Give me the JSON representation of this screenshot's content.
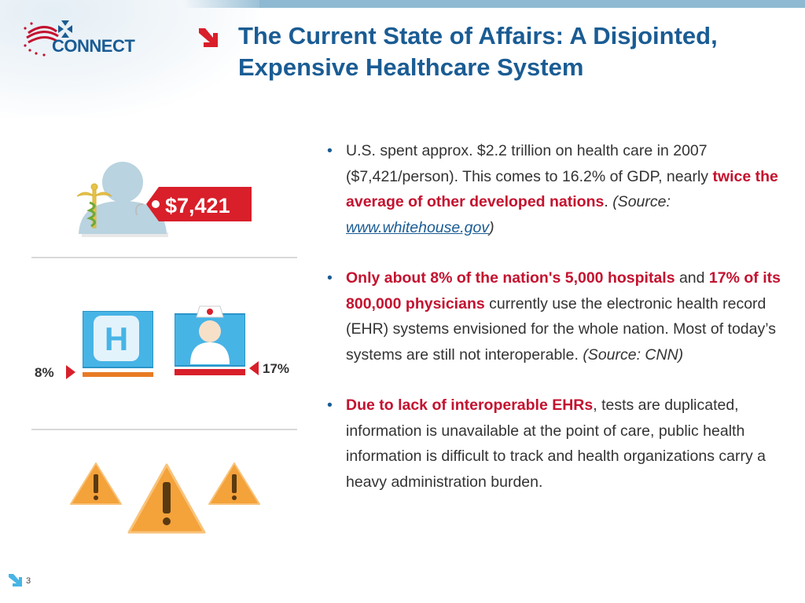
{
  "header": {
    "logo_text": "CONNECT",
    "title_line1": "The Current State of Affairs: A Disjointed,",
    "title_line2": "Expensive Healthcare System"
  },
  "infographic": {
    "price_tag": "$7,421",
    "hospital_pct": "8%",
    "physician_pct": "17%",
    "hospital_letter": "H"
  },
  "bullets": [
    {
      "t1": "U.S. spent approx. $2.2 trillion on health care in 2007 ($7,421/person). This comes to 16.2% of GDP, nearly ",
      "red1": "twice the average of other developed nations",
      "t2": ". ",
      "source_prefix": "(Source: ",
      "link": "www.whitehouse.gov",
      "source_suffix": ")"
    },
    {
      "red1": "Only about 8% of the nation's 5,000 hospitals",
      "t1": " and ",
      "red2": "17% of its 800,000 physicians",
      "t2": " currently use the electronic health record (EHR) systems envisioned for the whole nation. Most of today’s systems are still not interoperable. ",
      "source": "(Source: CNN)"
    },
    {
      "red1": "Due to lack of interoperable EHRs",
      "t1": ", tests are duplicated, information is unavailable at the point of care, public health information is difficult to track and health organizations carry a heavy administration burden."
    }
  ],
  "footer": {
    "page_number": "3"
  },
  "colors": {
    "brand_blue": "#1a5c94",
    "accent_red": "#c4122f",
    "tag_red": "#d81f2a",
    "icon_blue": "#47b4e6",
    "warning_orange": "#f4a23a"
  },
  "icons": [
    "connect-logo-icon",
    "title-arrow-icon",
    "person-icon",
    "caduceus-icon",
    "price-tag-icon",
    "hospital-icon",
    "nurse-icon",
    "warning-icon",
    "footer-arrow-icon"
  ]
}
